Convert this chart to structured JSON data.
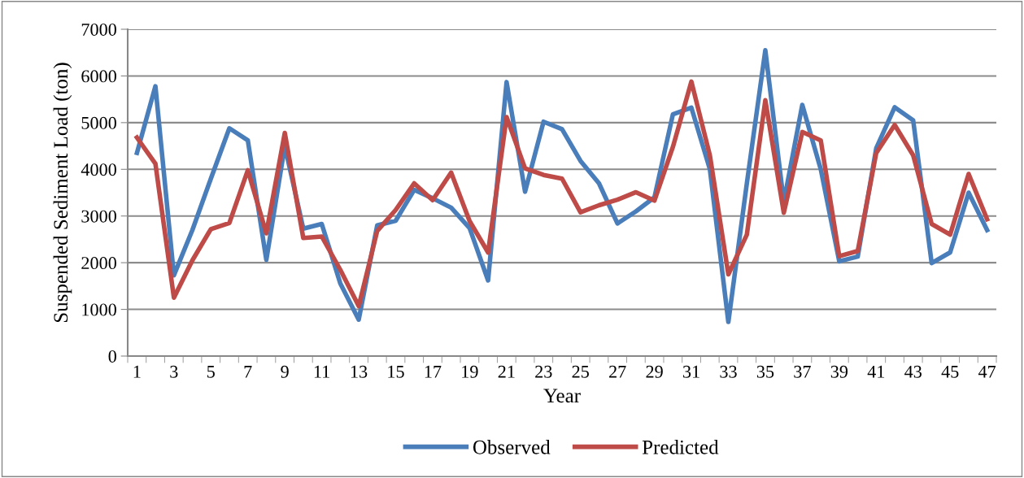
{
  "chart_data": {
    "type": "line",
    "xlabel": "Year",
    "ylabel": "Suspended Sediment Load (ton)",
    "categories": [
      "1",
      null,
      "3",
      null,
      "5",
      null,
      "7",
      null,
      "9",
      null,
      "11",
      null,
      "13",
      null,
      "15",
      null,
      "17",
      null,
      "19",
      null,
      "21",
      null,
      "23",
      null,
      "25",
      null,
      "27",
      null,
      "29",
      null,
      "31",
      null,
      "33",
      null,
      "35",
      null,
      "37",
      null,
      "39",
      null,
      "41",
      null,
      "43",
      null,
      "45",
      null,
      "47"
    ],
    "series": [
      {
        "name": "Observed",
        "color": "#4a7ebb",
        "values": [
          4350,
          5780,
          1730,
          2700,
          3800,
          4880,
          4620,
          2060,
          4500,
          2730,
          2830,
          1560,
          780,
          2800,
          2900,
          3560,
          3380,
          3180,
          2740,
          1620,
          5870,
          3520,
          5020,
          4860,
          4180,
          3700,
          2840,
          3100,
          3400,
          5180,
          5320,
          4000,
          730,
          3700,
          6550,
          3300,
          5380,
          4000,
          2030,
          2130,
          4450,
          5330,
          5050,
          1990,
          2220,
          3500,
          2700
        ]
      },
      {
        "name": "Predicted",
        "color": "#be4b48",
        "values": [
          4680,
          4120,
          1250,
          2050,
          2720,
          2850,
          3980,
          2630,
          4780,
          2530,
          2560,
          1850,
          1070,
          2680,
          3130,
          3700,
          3340,
          3930,
          2890,
          2220,
          5120,
          4020,
          3880,
          3800,
          3080,
          3230,
          3350,
          3510,
          3330,
          4480,
          5880,
          4300,
          1750,
          2600,
          5480,
          3070,
          4800,
          4620,
          2140,
          2250,
          4350,
          4950,
          4300,
          2830,
          2600,
          3900,
          2930
        ]
      }
    ],
    "ylim": [
      0,
      7000
    ],
    "yticks": [
      0,
      1000,
      2000,
      3000,
      4000,
      5000,
      6000,
      7000
    ],
    "grid": "y",
    "legend": "bottom",
    "marker": "none",
    "line_style": "solid"
  }
}
